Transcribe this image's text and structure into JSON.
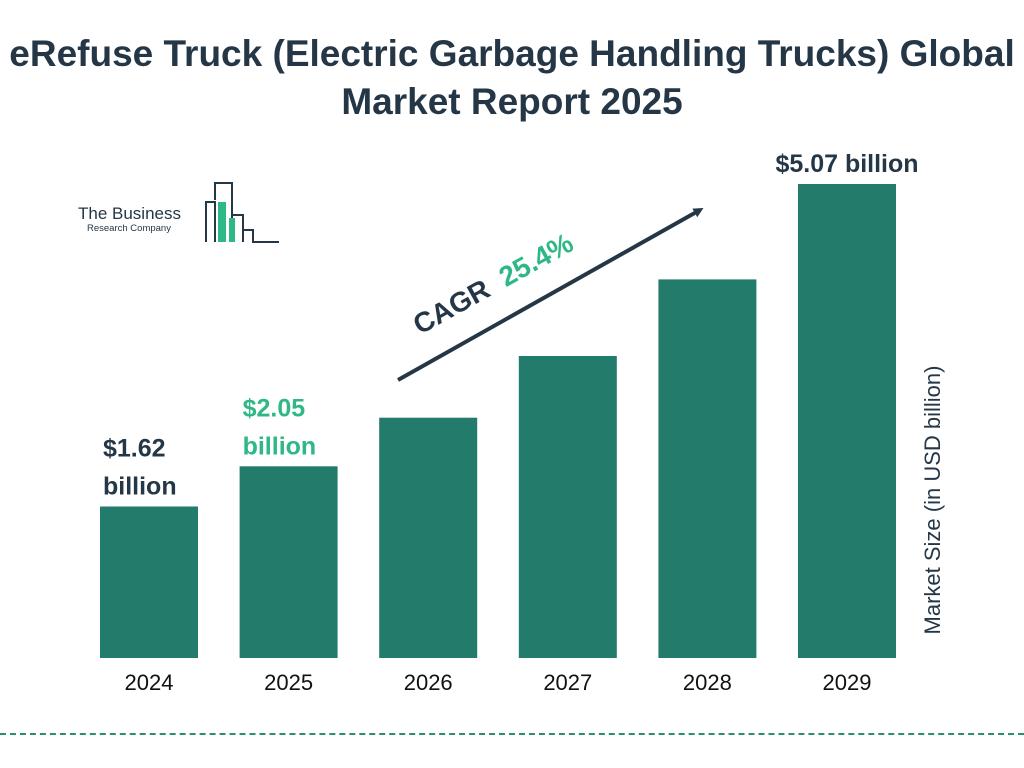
{
  "title": "eRefuse Truck (Electric Garbage Handling Trucks) Global Market Report 2025",
  "logo": {
    "line1": "The Business",
    "line2": "Research Company",
    "icon": "building-bars-logo-icon"
  },
  "colors": {
    "bar": "#227b6b",
    "text_dark": "#253746",
    "accent_green": "#2eb886",
    "dashed_line": "#2e8b74"
  },
  "cagr": {
    "label": "CAGR",
    "value": "25.4%"
  },
  "chart_data": {
    "type": "bar",
    "categories": [
      "2024",
      "2025",
      "2026",
      "2027",
      "2028",
      "2029"
    ],
    "values": [
      1.62,
      2.05,
      2.57,
      3.23,
      4.05,
      5.07
    ],
    "data_labels": [
      {
        "index": 0,
        "lines": [
          "$1.62",
          "billion"
        ],
        "color": "#253746"
      },
      {
        "index": 1,
        "lines": [
          "$2.05",
          "billion"
        ],
        "color": "#2eb886"
      },
      {
        "index": 5,
        "lines": [
          "$5.07 billion"
        ],
        "color": "#253746"
      }
    ],
    "xlabel": "",
    "ylabel": "Market Size (in USD billion)",
    "ylim": [
      0,
      5.07
    ],
    "grid": false,
    "legend": "none"
  }
}
